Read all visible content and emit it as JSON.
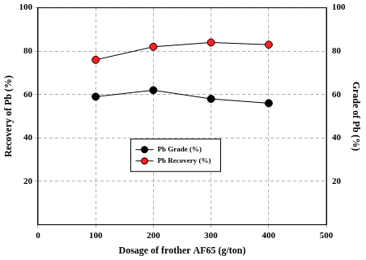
{
  "chart_data": {
    "type": "line",
    "x": [
      100,
      200,
      300,
      400
    ],
    "series": [
      {
        "name": "Pb Grade (%)",
        "color": "#000000",
        "values": [
          59,
          62,
          58,
          56
        ],
        "axis": "y2",
        "marker": "circle"
      },
      {
        "name": "Pb Recovery (%)",
        "color": "#ff2020",
        "values": [
          76,
          82,
          84,
          83
        ],
        "marker": "circle"
      }
    ],
    "xlabel": "Dosage of frother AF65 (g/ton)",
    "ylabel": "Recovery of Pb (%)",
    "y2label": "Grade of Pb (%)",
    "xlim": [
      0,
      500
    ],
    "xticks": [
      0,
      100,
      200,
      300,
      400,
      500
    ],
    "ylim": [
      0,
      100
    ],
    "yticks": [
      20,
      40,
      60,
      80,
      100
    ],
    "y2lim": [
      0,
      100
    ],
    "y2ticks": [
      20,
      40,
      60,
      80,
      100
    ],
    "grid": true,
    "legend": "lower center",
    "line_style": "solid"
  }
}
